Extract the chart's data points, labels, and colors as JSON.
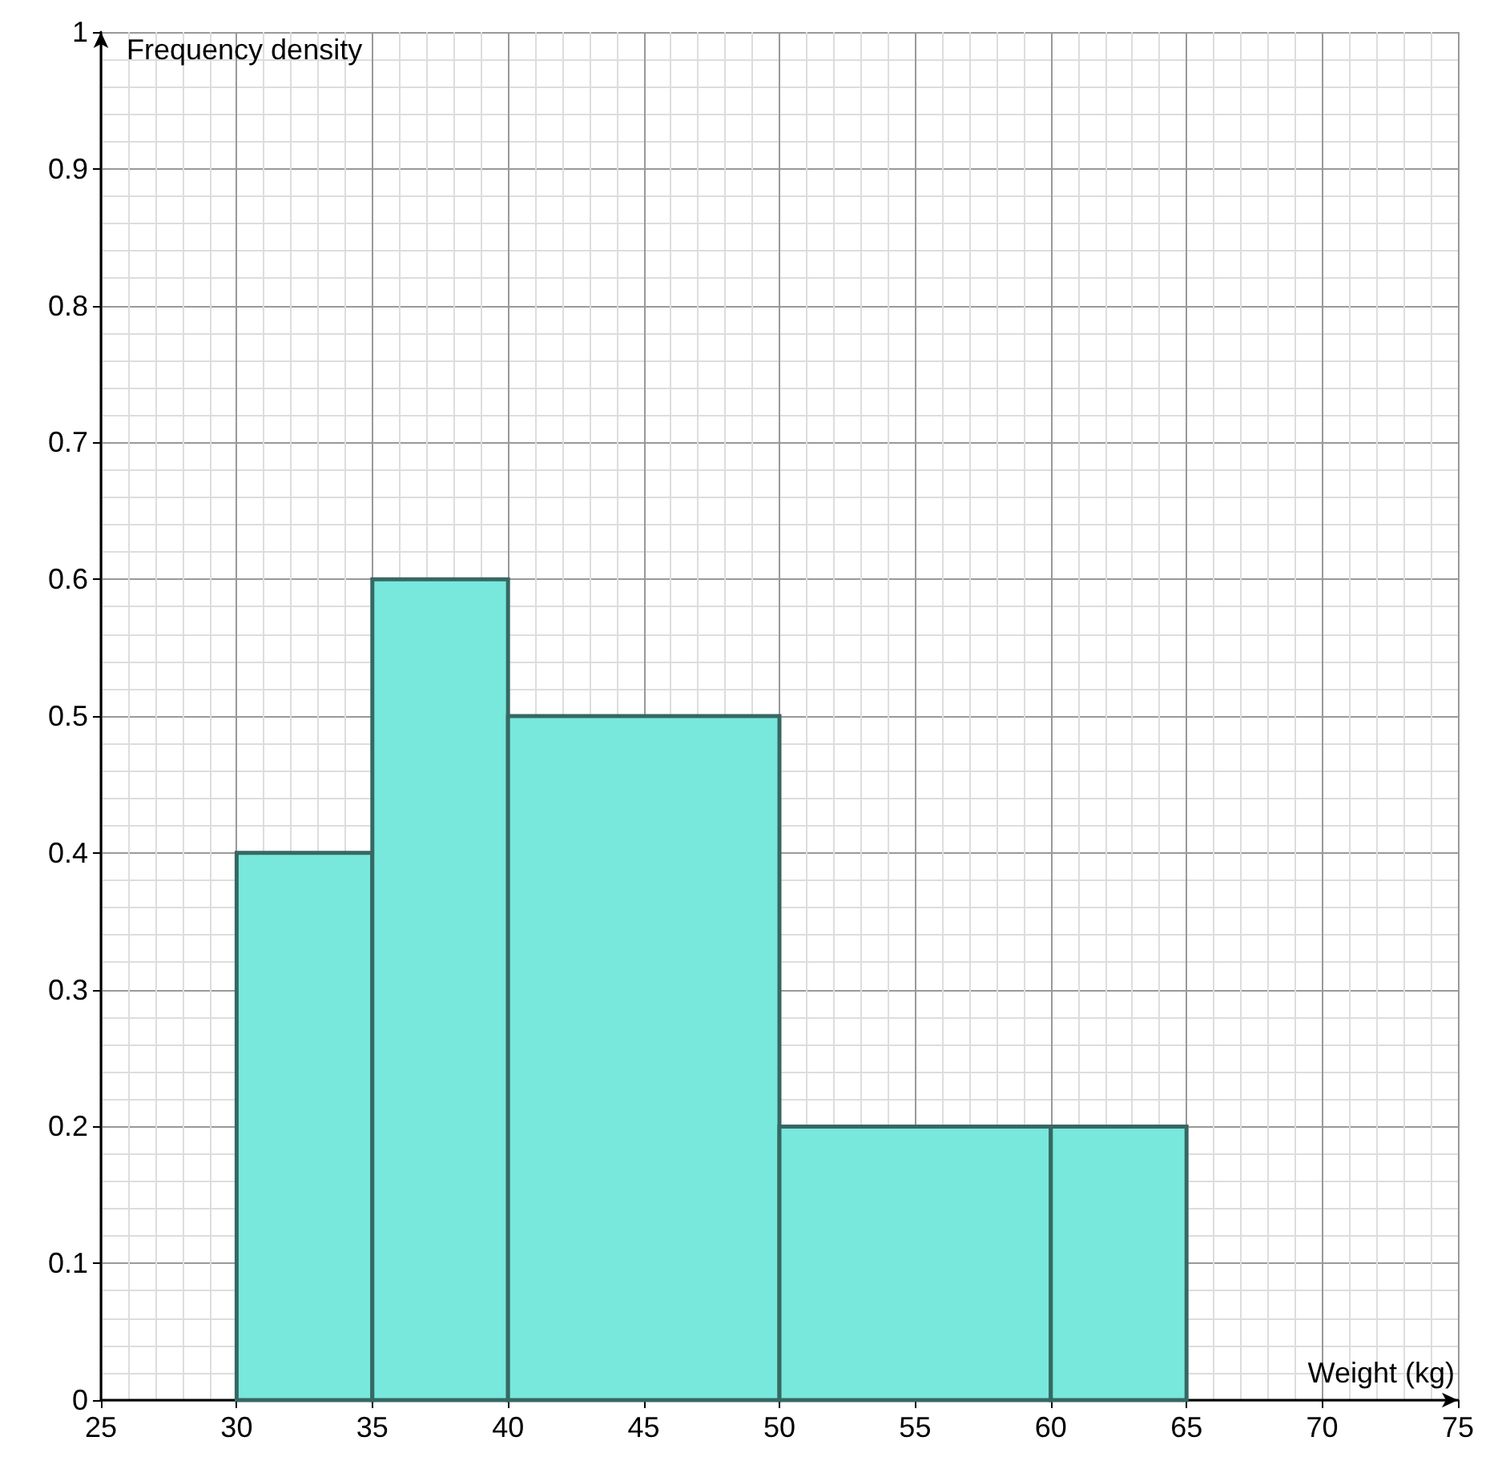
{
  "chart_data": {
    "type": "histogram",
    "xlabel": "Weight (kg)",
    "ylabel": "Frequency density",
    "bins": [
      30,
      35,
      40,
      50,
      60,
      65
    ],
    "values": [
      0.4,
      0.6,
      0.5,
      0.2,
      0.2
    ],
    "color": "#78e8dc",
    "xlim": [
      25,
      75
    ],
    "xticks": [
      25,
      30,
      35,
      40,
      45,
      50,
      55,
      60,
      65,
      70,
      75
    ],
    "ylim": [
      0,
      1
    ],
    "yticks": [
      0,
      0.1,
      0.2,
      0.3,
      0.4,
      0.5,
      0.6,
      0.7,
      0.8,
      0.9,
      1
    ],
    "grid": true
  }
}
